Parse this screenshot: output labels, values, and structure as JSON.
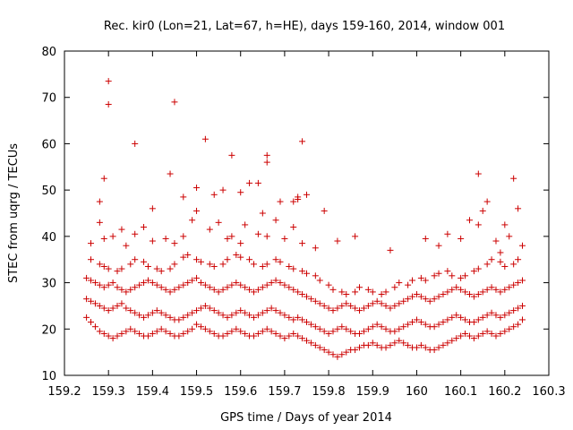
{
  "chart_data": {
    "type": "scatter",
    "title": "Rec. kir0 (Lon=21, Lat=67, h=HE), days 159-160, 2014, window 001",
    "xlabel": "GPS time / Days of year 2014",
    "ylabel": "STEC from uqrg / TECUs",
    "xlim": [
      159.2,
      160.3
    ],
    "ylim": [
      10,
      80
    ],
    "x_ticks": [
      159.2,
      159.3,
      159.4,
      159.5,
      159.6,
      159.7,
      159.8,
      159.9,
      160.0,
      160.1,
      160.2,
      160.3
    ],
    "x_tick_labels": [
      "159.2",
      "159.3",
      "159.4",
      "159.5",
      "159.6",
      "159.7",
      "159.8",
      "159.9",
      "160",
      "160.1",
      "160.2",
      "160.3"
    ],
    "y_ticks": [
      10,
      20,
      30,
      40,
      50,
      60,
      70,
      80
    ],
    "y_tick_labels": [
      "10",
      "20",
      "30",
      "40",
      "50",
      "60",
      "70",
      "80"
    ],
    "grid": false,
    "legend": "none",
    "marker": "plus",
    "color": "#cc0000",
    "series": [
      {
        "x": [
          159.25,
          159.26,
          159.27,
          159.28,
          159.29,
          159.3,
          159.31,
          159.32,
          159.33,
          159.34,
          159.35,
          159.36,
          159.37,
          159.38,
          159.39,
          159.4,
          159.41,
          159.42,
          159.43,
          159.44,
          159.45,
          159.46,
          159.47,
          159.48,
          159.49,
          159.5,
          159.51,
          159.52,
          159.53,
          159.54,
          159.55,
          159.56,
          159.57,
          159.58,
          159.59,
          159.6,
          159.61,
          159.62,
          159.63,
          159.64,
          159.65,
          159.66,
          159.67,
          159.68,
          159.69,
          159.7,
          159.71,
          159.72,
          159.73,
          159.74,
          159.75,
          159.76,
          159.77,
          159.78,
          159.79,
          159.8,
          159.81,
          159.82,
          159.83,
          159.84,
          159.85,
          159.86,
          159.87,
          159.88,
          159.89,
          159.9,
          159.91,
          159.92,
          159.93,
          159.94,
          159.95,
          159.96,
          159.97,
          159.98,
          159.99,
          160.0,
          160.01,
          160.02,
          160.03,
          160.04,
          160.05,
          160.06,
          160.07,
          160.08,
          160.09,
          160.1,
          160.11,
          160.12,
          160.13,
          160.14,
          160.15,
          160.16,
          160.17,
          160.18,
          160.19,
          160.2,
          160.21,
          160.22,
          160.23,
          160.24
        ],
        "y": [
          22.5,
          21.5,
          20.5,
          19.5,
          19.0,
          18.5,
          18.0,
          18.5,
          19.0,
          19.5,
          20.0,
          19.5,
          19.0,
          18.5,
          18.5,
          19.0,
          19.5,
          20.0,
          19.5,
          19.0,
          18.5,
          18.5,
          19.0,
          19.5,
          20.0,
          21.0,
          20.5,
          20.0,
          19.5,
          19.0,
          18.5,
          18.5,
          19.0,
          19.5,
          20.0,
          19.5,
          19.0,
          18.5,
          18.5,
          19.0,
          19.5,
          20.0,
          19.5,
          19.0,
          18.5,
          18.0,
          18.5,
          19.0,
          18.5,
          18.0,
          17.5,
          17.0,
          16.5,
          16.0,
          15.5,
          15.0,
          14.5,
          14.0,
          14.5,
          15.0,
          15.5,
          15.5,
          16.0,
          16.5,
          16.5,
          17.0,
          16.5,
          16.0,
          16.0,
          16.5,
          17.0,
          17.5,
          17.0,
          16.5,
          16.0,
          16.0,
          16.5,
          16.0,
          15.5,
          15.5,
          16.0,
          16.5,
          17.0,
          17.5,
          18.0,
          18.5,
          19.0,
          18.5,
          18.0,
          18.5,
          19.0,
          19.5,
          19.0,
          18.5,
          19.0,
          19.5,
          20.0,
          20.5,
          21.0,
          22.0
        ]
      },
      {
        "x": [
          159.25,
          159.26,
          159.27,
          159.28,
          159.29,
          159.3,
          159.31,
          159.32,
          159.33,
          159.34,
          159.35,
          159.36,
          159.37,
          159.38,
          159.39,
          159.4,
          159.41,
          159.42,
          159.43,
          159.44,
          159.45,
          159.46,
          159.47,
          159.48,
          159.49,
          159.5,
          159.51,
          159.52,
          159.53,
          159.54,
          159.55,
          159.56,
          159.57,
          159.58,
          159.59,
          159.6,
          159.61,
          159.62,
          159.63,
          159.64,
          159.65,
          159.66,
          159.67,
          159.68,
          159.69,
          159.7,
          159.71,
          159.72,
          159.73,
          159.74,
          159.75,
          159.76,
          159.77,
          159.78,
          159.79,
          159.8,
          159.81,
          159.82,
          159.83,
          159.84,
          159.85,
          159.86,
          159.87,
          159.88,
          159.89,
          159.9,
          159.91,
          159.92,
          159.93,
          159.94,
          159.95,
          159.96,
          159.97,
          159.98,
          159.99,
          160.0,
          160.01,
          160.02,
          160.03,
          160.04,
          160.05,
          160.06,
          160.07,
          160.08,
          160.09,
          160.1,
          160.11,
          160.12,
          160.13,
          160.14,
          160.15,
          160.16,
          160.17,
          160.18,
          160.19,
          160.2,
          160.21,
          160.22,
          160.23,
          160.24
        ],
        "y": [
          26.5,
          26.0,
          25.5,
          25.0,
          24.5,
          24.0,
          24.5,
          25.0,
          25.5,
          24.5,
          24.0,
          23.5,
          23.0,
          22.5,
          23.0,
          23.5,
          24.0,
          23.5,
          23.0,
          22.5,
          22.0,
          22.0,
          22.5,
          23.0,
          23.5,
          24.0,
          24.5,
          25.0,
          24.5,
          24.0,
          23.5,
          23.0,
          22.5,
          23.0,
          23.5,
          24.0,
          23.5,
          23.0,
          22.5,
          23.0,
          23.5,
          24.0,
          24.5,
          24.0,
          23.5,
          23.0,
          22.5,
          22.0,
          22.5,
          22.0,
          21.5,
          21.0,
          20.5,
          20.0,
          19.5,
          19.0,
          19.5,
          20.0,
          20.5,
          20.0,
          19.5,
          19.0,
          19.0,
          19.5,
          20.0,
          20.5,
          21.0,
          20.5,
          20.0,
          19.5,
          19.5,
          20.0,
          20.5,
          21.0,
          21.5,
          22.0,
          21.5,
          21.0,
          20.5,
          20.5,
          21.0,
          21.5,
          22.0,
          22.5,
          23.0,
          22.5,
          22.0,
          21.5,
          21.5,
          22.0,
          22.5,
          23.0,
          23.5,
          23.0,
          22.5,
          23.0,
          23.5,
          24.0,
          24.5,
          25.0
        ]
      },
      {
        "x": [
          159.25,
          159.26,
          159.27,
          159.28,
          159.29,
          159.3,
          159.31,
          159.32,
          159.33,
          159.34,
          159.35,
          159.36,
          159.37,
          159.38,
          159.39,
          159.4,
          159.41,
          159.42,
          159.43,
          159.44,
          159.45,
          159.46,
          159.47,
          159.48,
          159.49,
          159.5,
          159.51,
          159.52,
          159.53,
          159.54,
          159.55,
          159.56,
          159.57,
          159.58,
          159.59,
          159.6,
          159.61,
          159.62,
          159.63,
          159.64,
          159.65,
          159.66,
          159.67,
          159.68,
          159.69,
          159.7,
          159.71,
          159.72,
          159.73,
          159.74,
          159.75,
          159.76,
          159.77,
          159.78,
          159.79,
          159.8,
          159.81,
          159.82,
          159.83,
          159.84,
          159.85,
          159.86,
          159.87,
          159.88,
          159.89,
          159.9,
          159.91,
          159.92,
          159.93,
          159.94,
          159.95,
          159.96,
          159.97,
          159.98,
          159.99,
          160.0,
          160.01,
          160.02,
          160.03,
          160.04,
          160.05,
          160.06,
          160.07,
          160.08,
          160.09,
          160.1,
          160.11,
          160.12,
          160.13,
          160.14,
          160.15,
          160.16,
          160.17,
          160.18,
          160.19,
          160.2,
          160.21,
          160.22,
          160.23,
          160.24
        ],
        "y": [
          31.0,
          30.5,
          30.0,
          29.5,
          29.0,
          29.5,
          30.0,
          29.0,
          28.5,
          28.0,
          28.5,
          29.0,
          29.5,
          30.0,
          30.5,
          30.0,
          29.5,
          29.0,
          28.5,
          28.0,
          28.5,
          29.0,
          29.5,
          30.0,
          30.5,
          31.0,
          30.0,
          29.5,
          29.0,
          28.5,
          28.0,
          28.5,
          29.0,
          29.5,
          30.0,
          29.5,
          29.0,
          28.5,
          28.0,
          28.5,
          29.0,
          29.5,
          30.0,
          30.5,
          30.0,
          29.5,
          29.0,
          28.5,
          28.0,
          27.5,
          27.0,
          26.5,
          26.0,
          25.5,
          25.0,
          24.5,
          24.0,
          24.5,
          25.0,
          25.5,
          25.0,
          24.5,
          24.0,
          24.5,
          25.0,
          25.5,
          26.0,
          25.5,
          25.0,
          24.5,
          25.0,
          25.5,
          26.0,
          26.5,
          27.0,
          27.5,
          27.0,
          26.5,
          26.0,
          26.5,
          27.0,
          27.5,
          28.0,
          28.5,
          29.0,
          28.5,
          28.0,
          27.5,
          27.0,
          27.5,
          28.0,
          28.5,
          29.0,
          28.5,
          28.0,
          28.5,
          29.0,
          29.5,
          30.0,
          30.5
        ]
      },
      {
        "x": [
          159.26,
          159.28,
          159.29,
          159.3,
          159.32,
          159.33,
          159.35,
          159.36,
          159.38,
          159.39,
          159.41,
          159.42,
          159.44,
          159.45,
          159.47,
          159.48,
          159.5,
          159.51,
          159.53,
          159.54,
          159.56,
          159.57,
          159.59,
          159.6,
          159.62,
          159.63,
          159.65,
          159.66,
          159.68,
          159.69,
          159.71,
          159.72,
          159.74,
          159.75,
          159.77,
          159.78,
          159.8,
          159.81,
          159.83,
          159.84,
          159.86,
          159.87,
          159.89,
          159.9,
          159.92,
          159.93,
          159.95,
          159.96,
          159.98,
          159.99,
          160.01,
          160.02,
          160.04,
          160.05,
          160.07,
          160.08,
          160.1,
          160.11,
          160.13,
          160.14,
          160.16,
          160.17,
          160.19,
          160.2,
          160.22,
          160.23
        ],
        "y": [
          35.0,
          34.0,
          33.5,
          33.0,
          32.5,
          33.0,
          34.0,
          35.0,
          34.5,
          33.5,
          33.0,
          32.5,
          33.0,
          34.0,
          35.5,
          36.0,
          35.0,
          34.5,
          34.0,
          33.5,
          34.0,
          35.0,
          36.0,
          35.5,
          35.0,
          34.0,
          33.5,
          34.0,
          35.0,
          34.5,
          33.5,
          33.0,
          32.5,
          32.0,
          31.5,
          30.5,
          29.5,
          28.5,
          28.0,
          27.5,
          28.0,
          29.0,
          28.5,
          28.0,
          27.5,
          28.0,
          29.0,
          30.0,
          29.5,
          30.5,
          31.0,
          30.5,
          31.5,
          32.0,
          32.5,
          31.5,
          31.0,
          31.5,
          32.5,
          33.0,
          34.0,
          35.0,
          34.5,
          33.5,
          34.0,
          35.0
        ]
      },
      {
        "x": [
          159.26,
          159.28,
          159.29,
          159.31,
          159.33,
          159.34,
          159.36,
          159.38,
          159.4,
          159.43,
          159.45,
          159.47,
          159.49,
          159.5,
          159.53,
          159.55,
          159.57,
          159.58,
          159.6,
          159.61,
          159.64,
          159.65,
          159.66,
          159.68,
          159.7,
          159.72,
          159.73,
          159.74,
          159.77,
          159.79,
          159.82,
          159.86,
          159.94,
          160.02,
          160.05,
          160.07,
          160.1,
          160.12,
          160.14,
          160.15,
          160.16,
          160.18,
          160.19,
          160.2,
          160.21,
          160.23,
          160.24
        ],
        "y": [
          38.5,
          43.0,
          39.5,
          40.0,
          41.5,
          38.0,
          40.5,
          42.0,
          39.0,
          39.5,
          38.5,
          40.0,
          43.5,
          45.5,
          41.5,
          43.0,
          39.5,
          40.0,
          38.5,
          42.5,
          40.5,
          45.0,
          40.0,
          43.5,
          39.5,
          42.0,
          48.5,
          38.5,
          37.5,
          45.5,
          39.0,
          40.0,
          37.0,
          39.5,
          38.0,
          40.5,
          39.5,
          43.5,
          42.5,
          45.5,
          47.5,
          39.0,
          36.5,
          42.5,
          40.0,
          46.0,
          38.0
        ]
      },
      {
        "x": [
          159.28,
          159.29,
          159.3,
          159.36,
          159.4,
          159.44,
          159.45,
          159.47,
          159.5,
          159.52,
          159.54,
          159.56,
          159.58,
          159.6,
          159.62,
          159.64,
          159.66,
          159.66,
          159.69,
          159.72,
          159.73,
          159.74,
          159.75,
          160.14,
          160.22
        ],
        "y": [
          47.5,
          52.5,
          68.5,
          60.0,
          46.0,
          53.5,
          69.0,
          48.5,
          50.5,
          61.0,
          49.0,
          50.0,
          57.5,
          49.5,
          51.5,
          51.5,
          57.5,
          56.0,
          47.5,
          47.5,
          48.0,
          60.5,
          49.0,
          53.5,
          52.5
        ]
      },
      {
        "x": [
          159.3
        ],
        "y": [
          73.5
        ]
      }
    ]
  }
}
